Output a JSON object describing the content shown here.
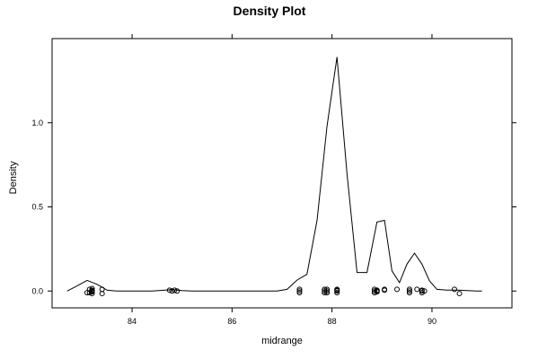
{
  "chart_data": {
    "type": "line",
    "title": "Density Plot",
    "xlabel": "midrange",
    "ylabel": "Density",
    "xlim": [
      82.4,
      91.6
    ],
    "ylim": [
      -0.1,
      1.5
    ],
    "grid": false,
    "x_ticks": [
      84,
      86,
      88,
      90
    ],
    "y_ticks": [
      0.0,
      0.5,
      1.0
    ],
    "x_tick_labels": [
      "84",
      "86",
      "88",
      "90"
    ],
    "y_tick_labels": [
      "0.0",
      "0.5",
      "1.0"
    ],
    "colors": {
      "line": "#000000",
      "points": "#000000",
      "frame": "#000000"
    },
    "series": [
      {
        "type": "line",
        "x": [
          82.7,
          82.9,
          83.1,
          83.3,
          83.5,
          83.7,
          84.0,
          84.4,
          84.8,
          85.0,
          85.2,
          85.5,
          86.0,
          86.5,
          86.9,
          87.1,
          87.3,
          87.5,
          87.7,
          87.9,
          88.1,
          88.3,
          88.5,
          88.7,
          88.9,
          89.05,
          89.2,
          89.35,
          89.5,
          89.65,
          89.8,
          89.95,
          90.1,
          90.3,
          90.5,
          90.7,
          90.9,
          91.0
        ],
        "y": [
          0.0,
          0.03,
          0.063,
          0.04,
          0.005,
          0.0,
          0.0,
          0.0,
          0.008,
          0.003,
          0.0,
          0.0,
          0.0,
          0.0,
          0.0,
          0.01,
          0.065,
          0.1,
          0.42,
          0.98,
          1.39,
          0.7,
          0.11,
          0.11,
          0.41,
          0.42,
          0.12,
          0.05,
          0.16,
          0.225,
          0.16,
          0.06,
          0.01,
          0.005,
          0.005,
          0.003,
          0.0,
          0.0
        ]
      },
      {
        "type": "scatter",
        "marker": "circle-open",
        "x": [
          83.1,
          83.15,
          83.15,
          83.2,
          83.2,
          83.2,
          83.2,
          83.2,
          83.4,
          83.4,
          84.75,
          84.8,
          84.85,
          84.9,
          87.35,
          87.35,
          87.35,
          87.85,
          87.85,
          87.85,
          87.9,
          87.9,
          87.9,
          88.1,
          88.1,
          88.1,
          88.1,
          88.85,
          88.85,
          88.85,
          88.9,
          88.9,
          88.9,
          89.05,
          89.05,
          89.3,
          89.55,
          89.55,
          89.55,
          89.7,
          89.8,
          89.8,
          89.8,
          89.85,
          90.45,
          90.55
        ],
        "y": [
          -0.01,
          0.01,
          -0.01,
          0.015,
          0.005,
          -0.005,
          -0.015,
          0.0,
          0.01,
          -0.015,
          0.005,
          0.0,
          0.005,
          0.0,
          0.01,
          0.0,
          -0.01,
          0.01,
          0.0,
          -0.01,
          0.01,
          0.0,
          -0.01,
          0.01,
          0.0,
          -0.01,
          0.005,
          0.01,
          0.0,
          -0.01,
          0.005,
          -0.005,
          0.0,
          0.01,
          0.005,
          0.01,
          0.01,
          0.0,
          -0.01,
          0.01,
          0.0,
          -0.01,
          0.005,
          0.0,
          0.01,
          -0.015
        ]
      }
    ]
  }
}
